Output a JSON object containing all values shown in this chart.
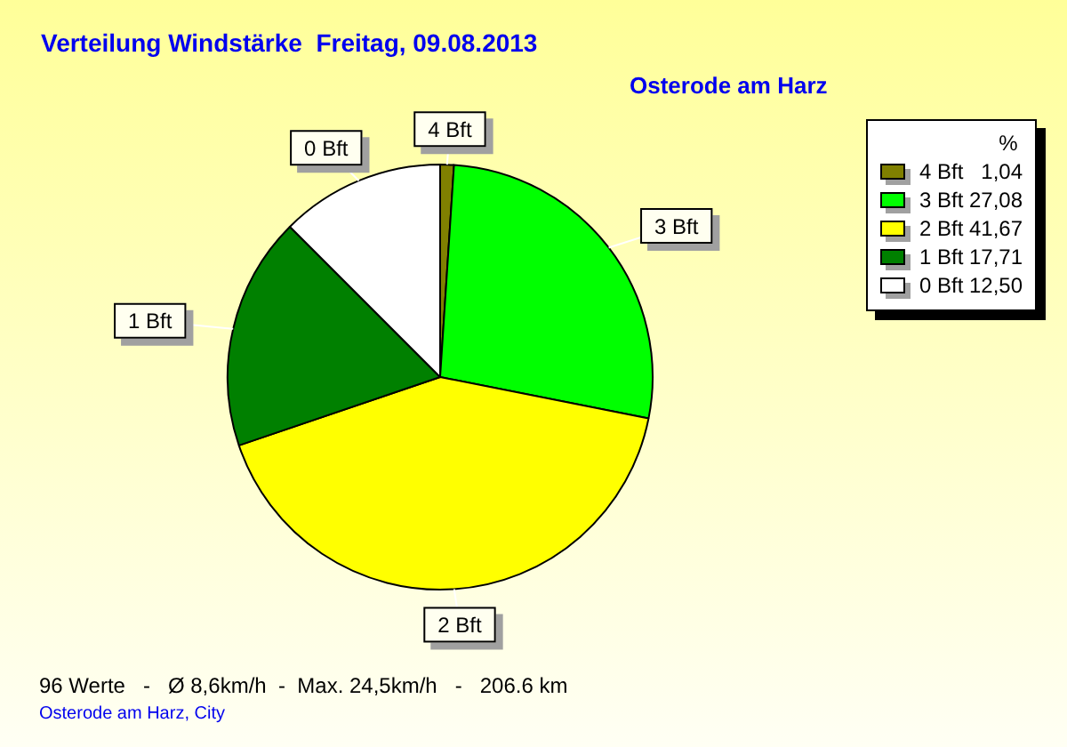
{
  "chart_data": {
    "type": "pie",
    "title": "Verteilung Windstärke  Freitag, 09.08.2013",
    "subtitle": "Osterode am Harz",
    "legend_title": "%",
    "categories": [
      "4 Bft",
      "3 Bft",
      "2 Bft",
      "1 Bft",
      "0 Bft"
    ],
    "values": [
      1.04,
      27.08,
      41.67,
      17.71,
      12.5
    ],
    "value_labels": [
      "1,04",
      "27,08",
      "41,67",
      "17,71",
      "12,50"
    ],
    "colors": [
      "#808000",
      "#00ff00",
      "#ffff00",
      "#008000",
      "#ffffff"
    ],
    "legend": "top right",
    "annotations": [
      "96 Werte   -   Ø 8,6km/h  -  Max. 24,5km/h   -   206.6 km",
      "Osterode am Harz, City"
    ]
  }
}
